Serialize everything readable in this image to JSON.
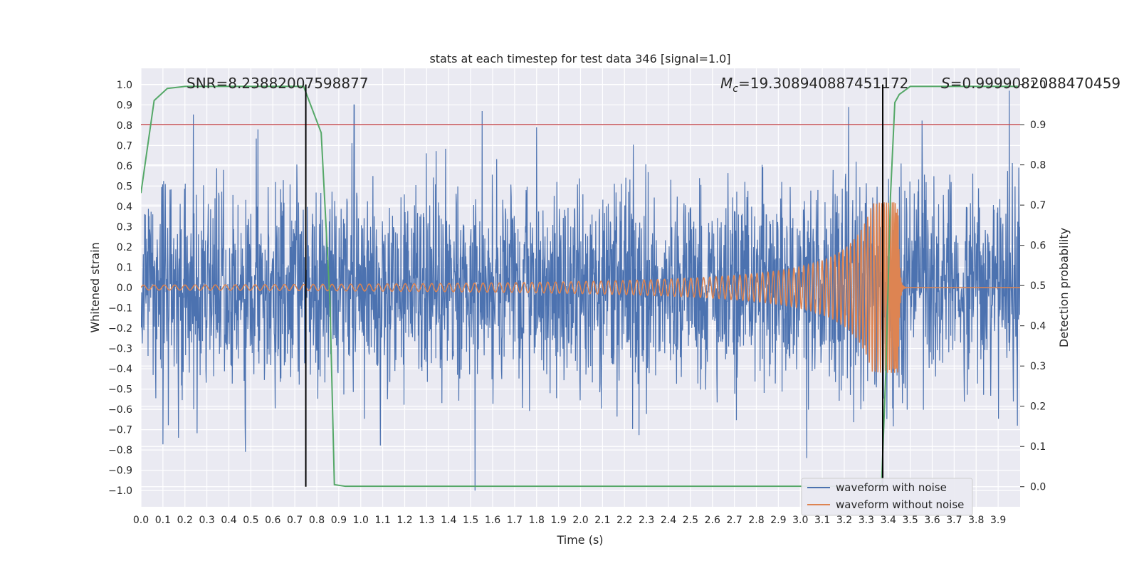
{
  "chart_data": {
    "type": "line",
    "title": "stats at each timestep for test data 346 [signal=1.0]",
    "xlabel": "Time (s)",
    "ylabel_left": "Whitened strain",
    "ylabel_right": "Detection probability",
    "xlim": [
      0.0,
      4.0
    ],
    "ylim_left": [
      -1.08,
      1.08
    ],
    "ylim_right": [
      -0.05,
      1.04
    ],
    "x_ticks": [
      "0.0",
      "0.1",
      "0.2",
      "0.3",
      "0.4",
      "0.5",
      "0.6",
      "0.7",
      "0.8",
      "0.9",
      "1.0",
      "1.1",
      "1.2",
      "1.3",
      "1.4",
      "1.5",
      "1.6",
      "1.7",
      "1.8",
      "1.9",
      "2.0",
      "2.1",
      "2.2",
      "2.3",
      "2.4",
      "2.5",
      "2.6",
      "2.7",
      "2.8",
      "2.9",
      "3.0",
      "3.1",
      "3.2",
      "3.3",
      "3.4",
      "3.5",
      "3.6",
      "3.7",
      "3.8",
      "3.9"
    ],
    "y_ticks_left": [
      "1.0",
      "0.9",
      "0.8",
      "0.7",
      "0.6",
      "0.5",
      "0.4",
      "0.3",
      "0.2",
      "0.1",
      "0.0",
      "−0.1",
      "−0.2",
      "−0.3",
      "−0.4",
      "−0.5",
      "−0.6",
      "−0.7",
      "−0.8",
      "−0.9",
      "−1.0"
    ],
    "y_ticks_right": [
      "1.0",
      "0.9",
      "0.8",
      "0.7",
      "0.6",
      "0.5",
      "0.4",
      "0.3",
      "0.2",
      "0.1",
      "0.0"
    ],
    "grid": true,
    "legend_position": "lower-right",
    "annotations": {
      "snr_text": "SNR=8.23882007598877",
      "mc_symbol": "M",
      "mc_sub": "c",
      "mc_value": "=19.308940887451172",
      "s_symbol": "S",
      "s_value": "=0.9999082088470459"
    },
    "threshold_right": 0.9,
    "vertical_markers_x": [
      0.75,
      3.375
    ],
    "series": [
      {
        "name": "waveform with noise",
        "axis": "left",
        "color": "#4c72b0",
        "noise_envelope": {
          "t": [
            0.0,
            4.0
          ],
          "peak": 0.9,
          "sigma": 0.25
        },
        "spikes": [
          {
            "t": 0.97,
            "v": 0.9
          },
          {
            "t": 1.8,
            "v": 0.79
          },
          {
            "t": 3.22,
            "v": 0.89
          },
          {
            "t": 3.39,
            "v": 0.9
          },
          {
            "t": 3.95,
            "v": 0.97
          },
          {
            "t": 1.52,
            "v": -1.0
          },
          {
            "t": 3.03,
            "v": -0.84
          },
          {
            "t": 0.17,
            "v": -0.74
          }
        ]
      },
      {
        "name": "waveform without noise",
        "axis": "left",
        "color": "#dd8452",
        "chirp": {
          "t_start": 0.0,
          "t_merge": 3.445,
          "t_end": 4.0,
          "amp_start": 0.012,
          "amp_peak": 0.42,
          "freq_start_hz": 21
        }
      },
      {
        "name": "detection probability",
        "axis": "right",
        "color": "#55a868",
        "x": [
          0.0,
          0.06,
          0.12,
          0.2,
          0.3,
          0.5,
          0.74,
          0.82,
          0.86,
          0.88,
          0.93,
          1.1,
          2.0,
          2.8,
          3.2,
          3.33,
          3.37,
          3.39,
          3.41,
          3.43,
          3.45,
          3.5,
          3.99
        ],
        "values": [
          0.73,
          0.96,
          0.99,
          0.995,
          0.995,
          0.995,
          0.995,
          0.88,
          0.46,
          0.005,
          0.001,
          0.001,
          0.001,
          0.001,
          0.001,
          0.001,
          0.01,
          0.3,
          0.72,
          0.955,
          0.975,
          0.995,
          0.995
        ]
      }
    ]
  }
}
